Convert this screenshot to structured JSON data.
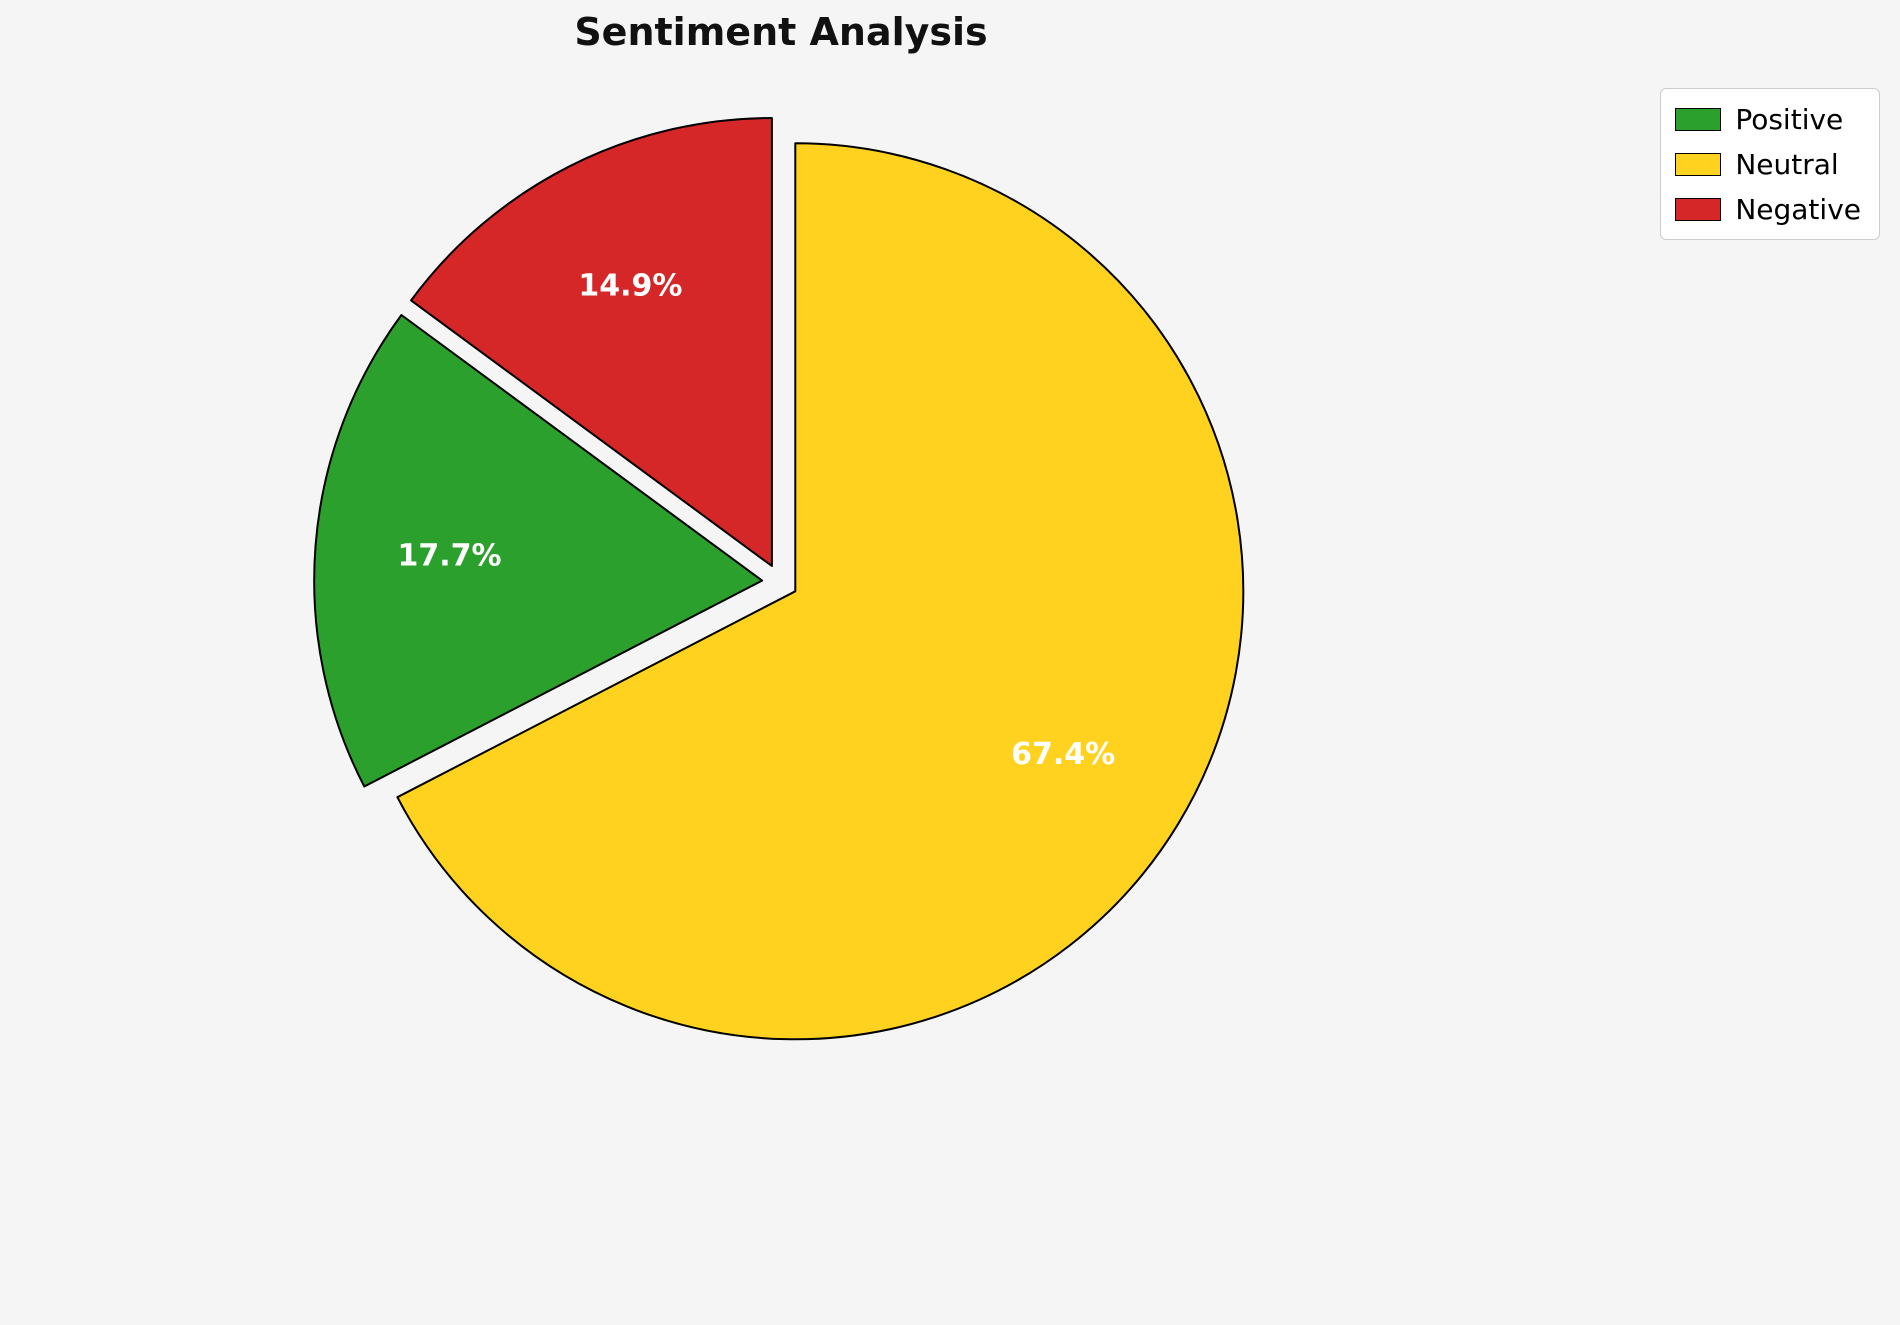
{
  "title": "Sentiment Analysis",
  "chart_data": {
    "type": "pie",
    "title": "Sentiment Analysis",
    "slices": [
      {
        "label": "Positive",
        "value": 17.7,
        "display": "17.7%",
        "color": "#2ca02c"
      },
      {
        "label": "Neutral",
        "value": 67.4,
        "display": "67.4%",
        "color": "#FFD21F"
      },
      {
        "label": "Negative",
        "value": 14.9,
        "display": "14.9%",
        "color": "#d62728"
      }
    ],
    "legend": {
      "position": "upper right",
      "entries": [
        "Positive",
        "Neutral",
        "Negative"
      ]
    },
    "layout": {
      "start_angle_deg": 90,
      "direction": "counterclockwise",
      "draw_order": [
        "Negative",
        "Positive",
        "Neutral"
      ],
      "explode": 0.04,
      "label_distance": 0.7,
      "wedge_edge_color": "#000000",
      "wedge_edge_width": 2,
      "background": "#f5f5f5",
      "percent_text_color": "#ffffff"
    }
  }
}
